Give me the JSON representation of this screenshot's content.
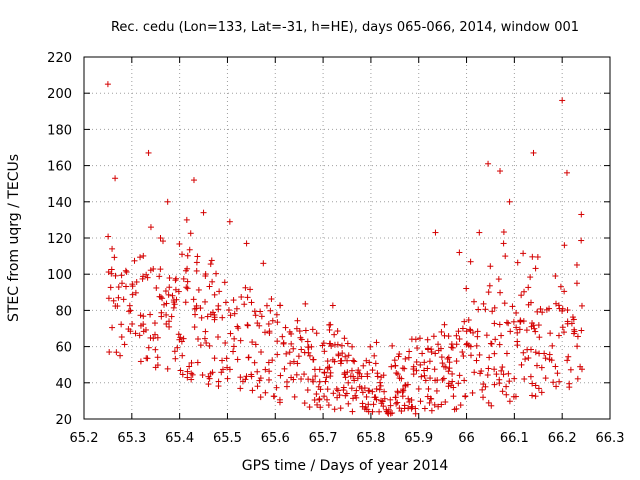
{
  "chart_data": {
    "type": "scatter",
    "title": "Rec. cedu (Lon=133, Lat=-31, h=HE), days 065-066, 2014, window 001",
    "xlabel": "GPS time / Days of year 2014",
    "ylabel": "STEC from uqrg / TECUs",
    "xlim": [
      65.2,
      66.3
    ],
    "ylim": [
      20,
      220
    ],
    "xticks": [
      "65.2",
      "65.3",
      "65.4",
      "65.5",
      "65.6",
      "65.7",
      "65.8",
      "65.9",
      "66",
      "66.1",
      "66.2",
      "66.3"
    ],
    "yticks": [
      "20",
      "40",
      "60",
      "80",
      "100",
      "120",
      "140",
      "160",
      "180",
      "200",
      "220"
    ],
    "grid": true,
    "marker": "plus",
    "color": "#d40000",
    "series_generation": "approximate visual density reconstruction",
    "points": []
  }
}
